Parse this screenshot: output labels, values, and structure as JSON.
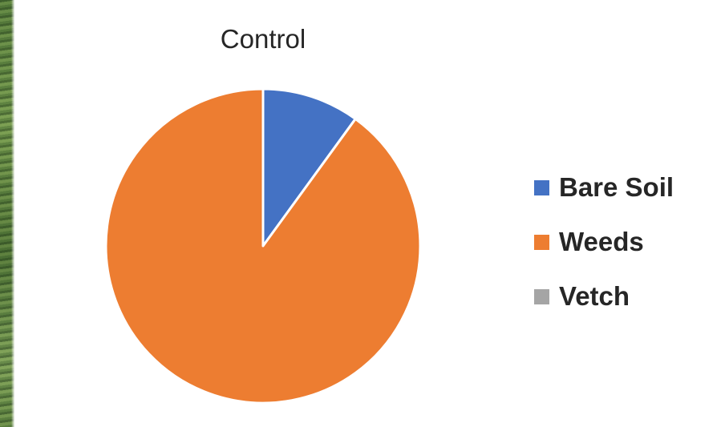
{
  "chart_data": {
    "type": "pie",
    "title": "Control",
    "slices": [
      {
        "label": "Bare Soil",
        "value": 10,
        "color": "#4472C4"
      },
      {
        "label": "Weeds",
        "value": 90,
        "color": "#ED7D31"
      },
      {
        "label": "Vetch",
        "value": 0,
        "color": "#A5A5A5"
      }
    ],
    "legend_position": "right",
    "slice_border_color": "#ffffff"
  }
}
